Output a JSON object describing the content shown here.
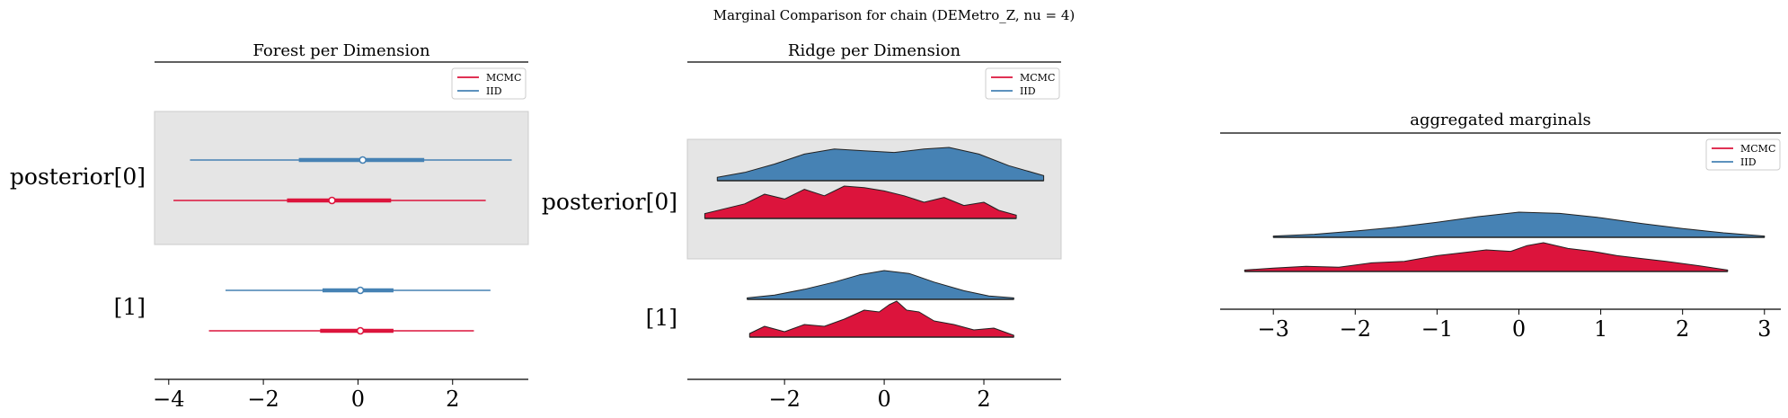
{
  "suptitle": "Marginal Comparison for chain (DEMetro_Z, nu = 4)",
  "colors": {
    "mcmc": "#dc143c",
    "iid": "#4682b4",
    "band": "#e5e5e5",
    "axis": "#000000"
  },
  "legend": {
    "entries": [
      "MCMC",
      "IID"
    ]
  },
  "chart_data": [
    {
      "type": "forest",
      "title": "Forest per Dimension",
      "xlim": [
        -4.3,
        3.6
      ],
      "xticks": [
        -4,
        -2,
        0,
        2
      ],
      "xtick_labels": [
        "−4",
        "−2",
        "0",
        "2"
      ],
      "ylabels": [
        "posterior[0]",
        "[1]"
      ],
      "legend_position": "upper-right",
      "series": [
        {
          "name": "IID",
          "dim": 0,
          "hdi94": [
            -3.55,
            3.25
          ],
          "hdi50": [
            -1.25,
            1.4
          ],
          "center": 0.1
        },
        {
          "name": "MCMC",
          "dim": 0,
          "hdi94": [
            -3.9,
            2.7
          ],
          "hdi50": [
            -1.5,
            0.7
          ],
          "center": -0.55
        },
        {
          "name": "IID",
          "dim": 1,
          "hdi94": [
            -2.8,
            2.8
          ],
          "hdi50": [
            -0.75,
            0.75
          ],
          "center": 0.05
        },
        {
          "name": "MCMC",
          "dim": 1,
          "hdi94": [
            -3.15,
            2.45
          ],
          "hdi50": [
            -0.8,
            0.75
          ],
          "center": 0.05
        }
      ]
    },
    {
      "type": "ridge",
      "title": "Ridge per Dimension",
      "xlim": [
        -3.95,
        3.55
      ],
      "xticks": [
        -2,
        0,
        2
      ],
      "xtick_labels": [
        "−2",
        "0",
        "2"
      ],
      "ylabels": [
        "posterior[0]",
        "[1]"
      ],
      "legend_position": "upper-right",
      "series": [
        {
          "name": "IID",
          "dim": 0,
          "x": [
            -3.35,
            -2.8,
            -2.2,
            -1.6,
            -1.0,
            -0.4,
            0.2,
            0.8,
            1.3,
            1.9,
            2.5,
            3.2
          ],
          "y": [
            0.1,
            0.25,
            0.5,
            0.8,
            0.95,
            0.9,
            0.85,
            0.95,
            1.0,
            0.8,
            0.45,
            0.15
          ]
        },
        {
          "name": "MCMC",
          "dim": 0,
          "x": [
            -3.6,
            -3.2,
            -2.8,
            -2.4,
            -2.0,
            -1.6,
            -1.2,
            -0.8,
            -0.4,
            0.0,
            0.4,
            0.8,
            1.2,
            1.6,
            2.0,
            2.3,
            2.65
          ],
          "y": [
            0.15,
            0.3,
            0.45,
            0.75,
            0.6,
            0.9,
            0.7,
            1.0,
            0.95,
            0.85,
            0.7,
            0.5,
            0.65,
            0.4,
            0.5,
            0.25,
            0.1
          ]
        },
        {
          "name": "IID",
          "dim": 1,
          "x": [
            -2.75,
            -2.2,
            -1.6,
            -1.0,
            -0.5,
            0.0,
            0.5,
            1.0,
            1.6,
            2.1,
            2.6
          ],
          "y": [
            0.05,
            0.15,
            0.35,
            0.6,
            0.85,
            1.0,
            0.9,
            0.6,
            0.3,
            0.12,
            0.05
          ]
        },
        {
          "name": "MCMC",
          "dim": 1,
          "x": [
            -2.7,
            -2.4,
            -2.0,
            -1.6,
            -1.2,
            -0.8,
            -0.4,
            -0.1,
            0.1,
            0.25,
            0.45,
            0.7,
            1.0,
            1.4,
            1.8,
            2.2,
            2.6
          ],
          "y": [
            0.1,
            0.3,
            0.15,
            0.35,
            0.3,
            0.5,
            0.75,
            0.7,
            0.9,
            1.0,
            0.75,
            0.7,
            0.45,
            0.35,
            0.2,
            0.25,
            0.05
          ]
        }
      ]
    },
    {
      "type": "ridge",
      "title": "aggregated marginals",
      "xlim": [
        -3.65,
        3.2
      ],
      "xticks": [
        -3,
        -2,
        -1,
        0,
        1,
        2,
        3
      ],
      "xtick_labels": [
        "−3",
        "−2",
        "−1",
        "0",
        "1",
        "2",
        "3"
      ],
      "ylabels": [],
      "legend_position": "upper-right",
      "series": [
        {
          "name": "IID",
          "dim": 0,
          "x": [
            -3.0,
            -2.5,
            -2.0,
            -1.5,
            -1.0,
            -0.5,
            0.0,
            0.5,
            1.0,
            1.5,
            2.0,
            2.5,
            3.0
          ],
          "y": [
            0.05,
            0.12,
            0.25,
            0.4,
            0.6,
            0.82,
            1.0,
            0.95,
            0.78,
            0.55,
            0.35,
            0.18,
            0.05
          ]
        },
        {
          "name": "MCMC",
          "dim": 1,
          "x": [
            -3.35,
            -3.0,
            -2.6,
            -2.2,
            -1.8,
            -1.4,
            -1.0,
            -0.7,
            -0.4,
            -0.1,
            0.1,
            0.3,
            0.6,
            0.9,
            1.2,
            1.5,
            1.8,
            2.2,
            2.55
          ],
          "y": [
            0.05,
            0.12,
            0.18,
            0.15,
            0.3,
            0.35,
            0.55,
            0.65,
            0.75,
            0.7,
            0.9,
            1.0,
            0.8,
            0.7,
            0.55,
            0.45,
            0.35,
            0.2,
            0.05
          ]
        }
      ]
    }
  ]
}
